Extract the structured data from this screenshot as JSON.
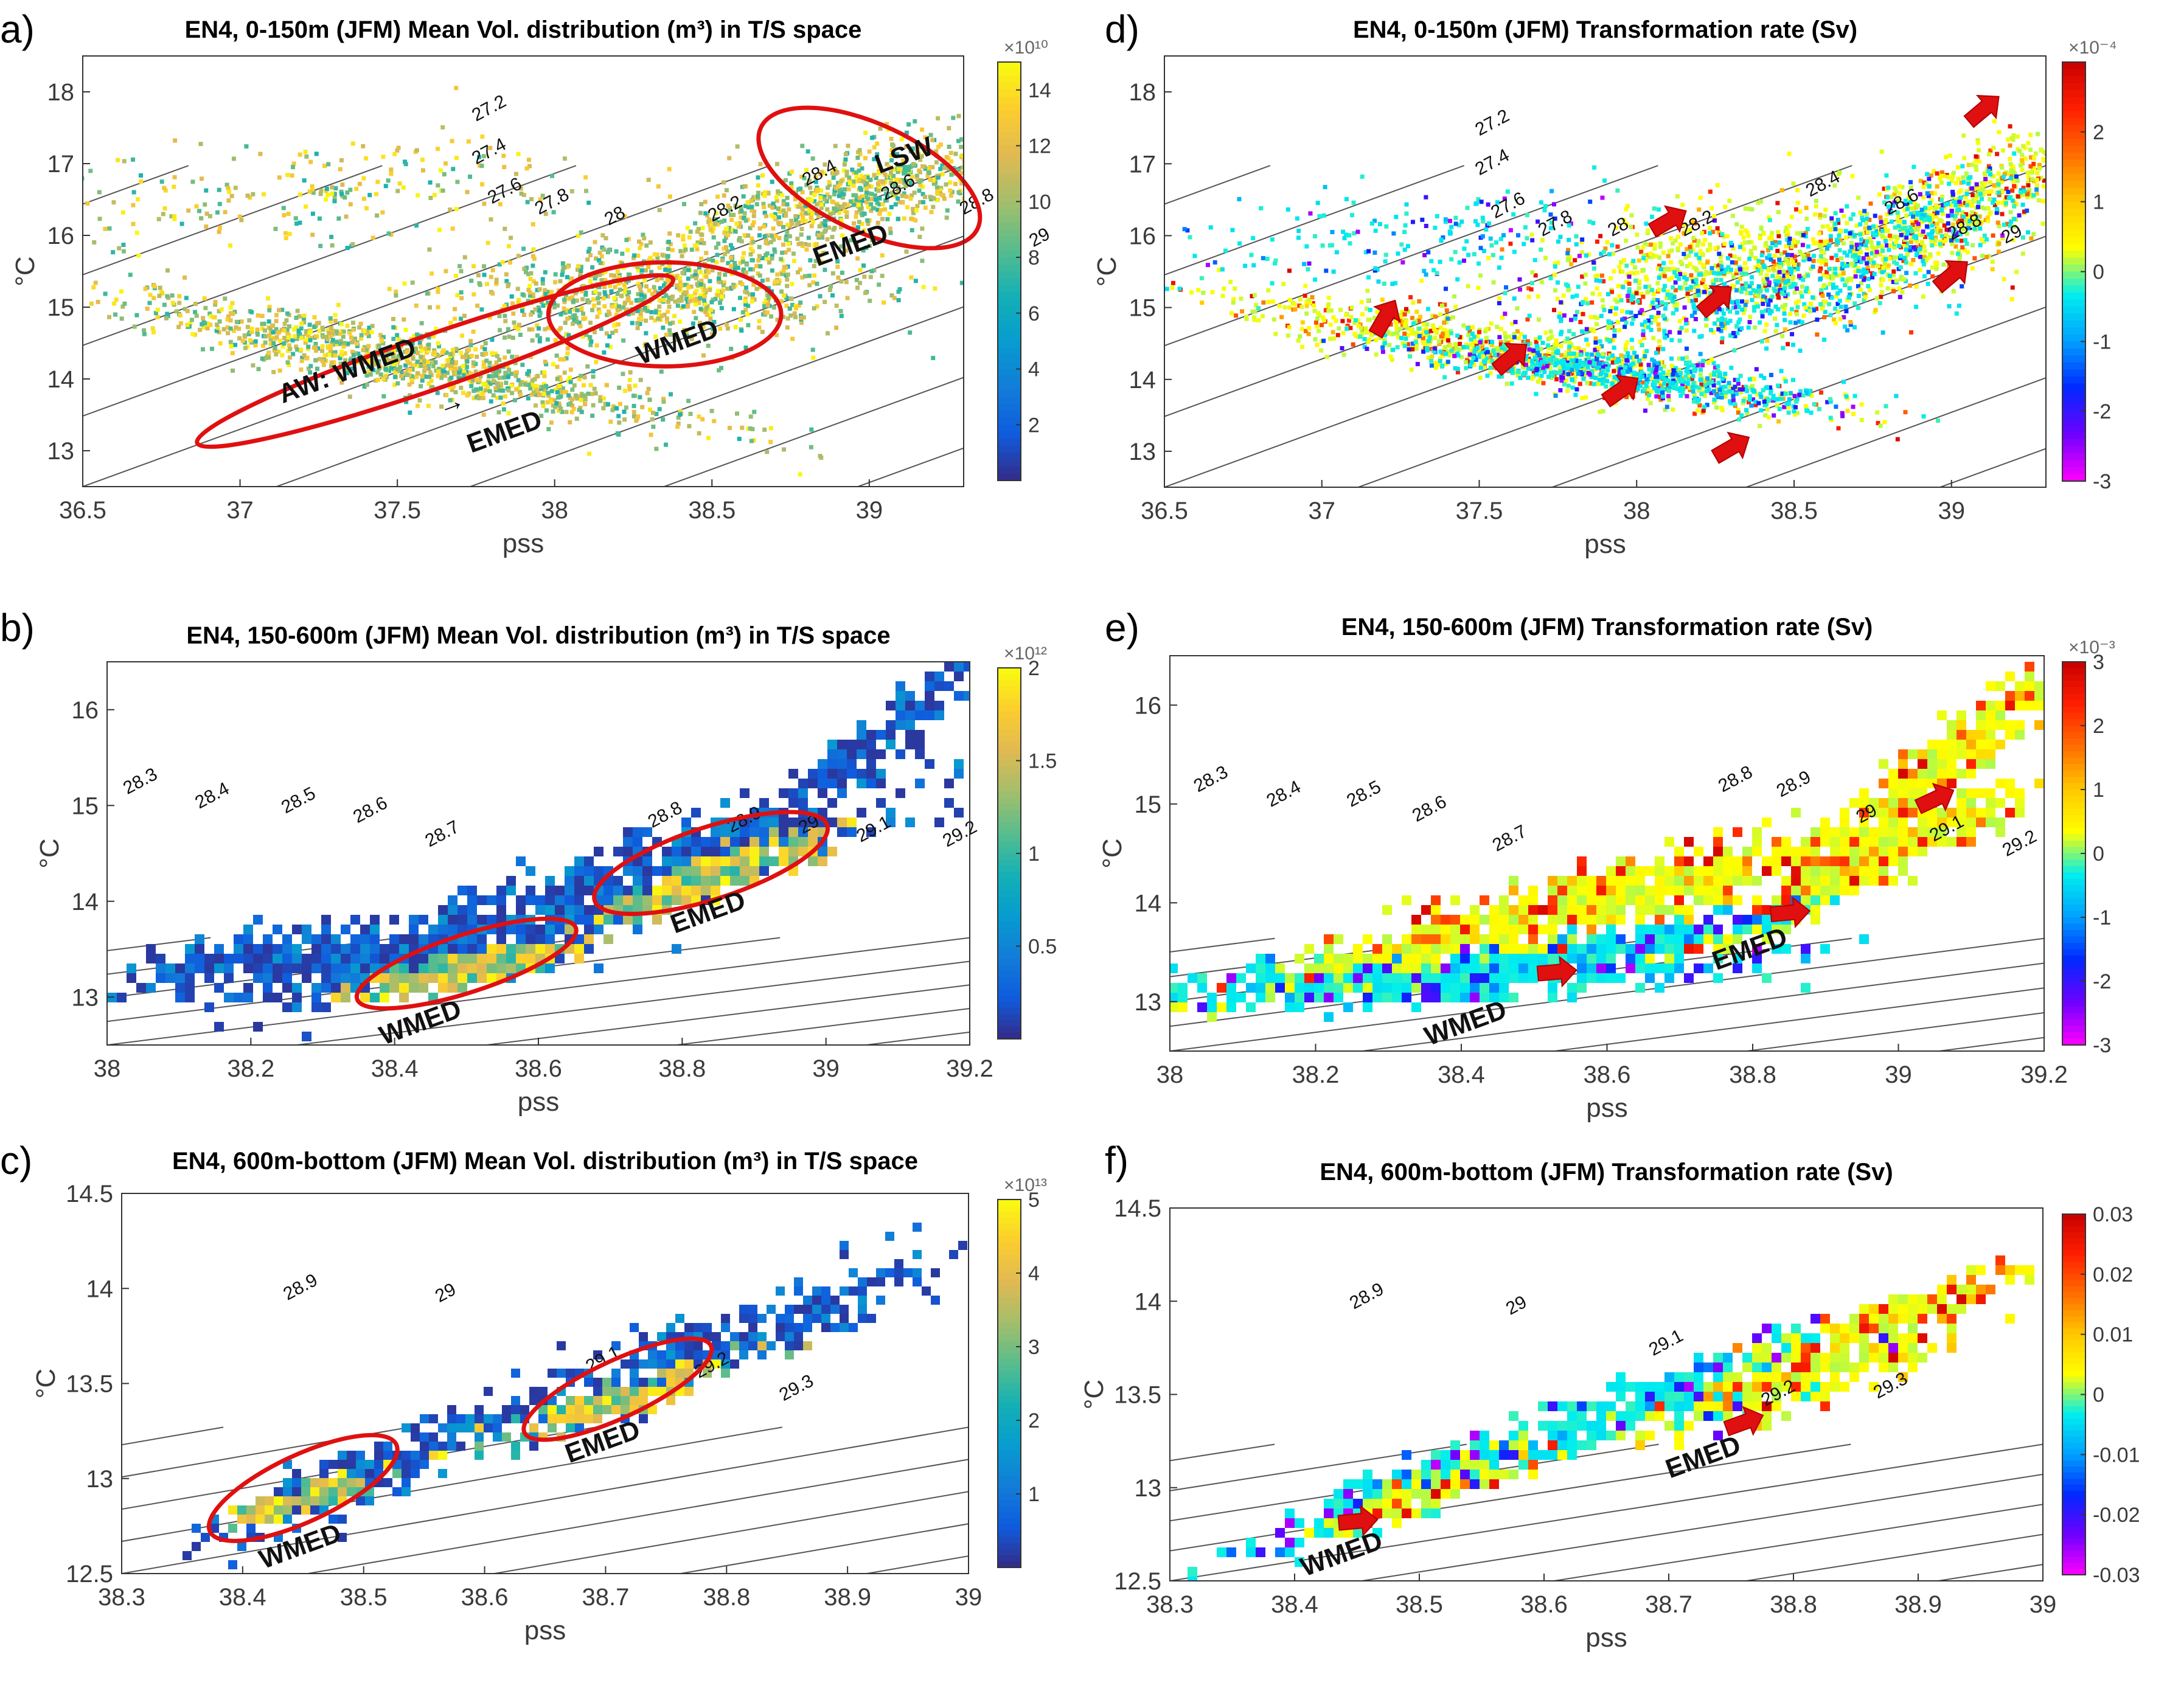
{
  "chart_data": [
    {
      "id": "a",
      "panel_label": "a)",
      "type": "scatter",
      "title": "EN4, 0-150m (JFM) Mean Vol. distribution (m³) in T/S space",
      "xlabel": "pss",
      "ylabel": "°C",
      "xlim": [
        36.5,
        39.3
      ],
      "ylim": [
        12.5,
        18.5
      ],
      "xticks": [
        "36.5",
        "37",
        "37.5",
        "38",
        "38.5",
        "39"
      ],
      "yticks": [
        "13",
        "14",
        "15",
        "16",
        "17",
        "18"
      ],
      "colormap": "parula",
      "colorbar": {
        "range": [
          0,
          15
        ],
        "ticks": [
          "2",
          "4",
          "6",
          "8",
          "10",
          "12",
          "14"
        ],
        "exponent": "×10¹⁰"
      },
      "isopycnals": [
        {
          "label": "27.2",
          "s": 37.8,
          "t": 17.7
        },
        {
          "label": "27.4",
          "s": 37.8,
          "t": 17.1
        },
        {
          "label": "27.6",
          "s": 37.85,
          "t": 16.55
        },
        {
          "label": "27.8",
          "s": 38.0,
          "t": 16.4
        },
        {
          "label": "28",
          "s": 38.2,
          "t": 16.2
        },
        {
          "label": "28.2",
          "s": 38.55,
          "t": 16.3
        },
        {
          "label": "28.4",
          "s": 38.85,
          "t": 16.8
        },
        {
          "label": "28.6",
          "s": 39.1,
          "t": 16.6
        },
        {
          "label": "28.8",
          "s": 39.35,
          "t": 16.4
        },
        {
          "label": "29",
          "s": 39.55,
          "t": 15.9
        }
      ],
      "annotations": [
        {
          "text": "AW: WMED",
          "s": 37.35,
          "t": 14.0
        },
        {
          "text": "→",
          "s": 37.68,
          "t": 13.55
        },
        {
          "text": "EMED",
          "s": 37.85,
          "t": 13.15
        },
        {
          "text": "WMED",
          "s": 38.4,
          "t": 14.4
        },
        {
          "text": "LSW",
          "s": 39.12,
          "t": 17.0
        },
        {
          "text": "EMED",
          "s": 38.95,
          "t": 15.75
        }
      ],
      "regions": [
        {
          "cs": 37.62,
          "ct": 14.25,
          "rs": 0.8,
          "rt": 0.75,
          "rot": -19
        },
        {
          "cs": 38.35,
          "ct": 14.9,
          "rs": 0.37,
          "rt": 1.45,
          "rot": 0
        },
        {
          "cs": 39.0,
          "ct": 16.8,
          "rs": 0.38,
          "rt": 1.5,
          "rot": 25
        }
      ],
      "arrows": [],
      "clouds": [
        {
          "cs": 37.5,
          "ct": 14.3,
          "ss": 0.45,
          "st": 0.6,
          "n": 1100,
          "dir": -0.9,
          "palette": "vol"
        },
        {
          "cs": 38.3,
          "ct": 15.2,
          "ss": 0.35,
          "st": 1.0,
          "n": 900,
          "dir": 0.2,
          "palette": "vol"
        },
        {
          "cs": 38.95,
          "ct": 16.6,
          "ss": 0.3,
          "st": 0.9,
          "n": 900,
          "dir": 1.2,
          "palette": "vol"
        },
        {
          "cs": 37.2,
          "ct": 16.6,
          "ss": 0.55,
          "st": 1.0,
          "n": 260,
          "dir": 0.3,
          "palette": "vol"
        }
      ]
    },
    {
      "id": "b",
      "panel_label": "b)",
      "type": "heatmap",
      "title": "EN4, 150-600m (JFM) Mean Vol. distribution (m³) in T/S space",
      "xlabel": "pss",
      "ylabel": "°C",
      "xlim": [
        38.0,
        39.2
      ],
      "ylim": [
        12.5,
        16.5
      ],
      "xticks": [
        "38",
        "38.2",
        "38.4",
        "38.6",
        "38.8",
        "39",
        "39.2"
      ],
      "yticks": [
        "13",
        "14",
        "15",
        "16"
      ],
      "colormap": "parula",
      "colorbar": {
        "range": [
          0,
          2
        ],
        "ticks": [
          "0.5",
          "1",
          "1.5",
          "2"
        ],
        "exponent": "×10¹²"
      },
      "isopycnals": [
        {
          "label": "28.3",
          "s": 38.05,
          "t": 15.2
        },
        {
          "label": "28.4",
          "s": 38.15,
          "t": 15.05
        },
        {
          "label": "28.5",
          "s": 38.27,
          "t": 15.0
        },
        {
          "label": "28.6",
          "s": 38.37,
          "t": 14.9
        },
        {
          "label": "28.7",
          "s": 38.47,
          "t": 14.65
        },
        {
          "label": "28.8",
          "s": 38.78,
          "t": 14.85
        },
        {
          "label": "28.9",
          "s": 38.89,
          "t": 14.8
        },
        {
          "label": "29",
          "s": 38.98,
          "t": 14.75
        },
        {
          "label": "29.1",
          "s": 39.07,
          "t": 14.7
        },
        {
          "label": "29.2",
          "s": 39.19,
          "t": 14.65
        }
      ],
      "annotations": [
        {
          "text": "WMED",
          "s": 38.44,
          "t": 12.65
        },
        {
          "text": "EMED",
          "s": 38.84,
          "t": 13.8
        }
      ],
      "regions": [
        {
          "cs": 38.5,
          "ct": 13.35,
          "rs": 0.16,
          "rt": 0.6,
          "rot": -18
        },
        {
          "cs": 38.84,
          "ct": 14.4,
          "rs": 0.17,
          "rt": 0.75,
          "rot": -18
        }
      ],
      "arrows": [],
      "clouds": [
        {
          "cs": 38.35,
          "ct": 13.5,
          "ss": 0.18,
          "st": 0.5,
          "n": 420,
          "dir": 0.8,
          "palette": "low"
        },
        {
          "cs": 38.72,
          "ct": 14.3,
          "ss": 0.2,
          "st": 0.55,
          "n": 480,
          "dir": 2.5,
          "palette": "low"
        },
        {
          "cs": 39.05,
          "ct": 15.6,
          "ss": 0.08,
          "st": 0.55,
          "n": 170,
          "dir": 6,
          "palette": "low"
        },
        {
          "cs": 38.5,
          "ct": 13.35,
          "ss": 0.07,
          "st": 0.22,
          "n": 170,
          "dir": 1.5,
          "palette": "vol"
        },
        {
          "cs": 38.84,
          "ct": 14.3,
          "ss": 0.07,
          "st": 0.28,
          "n": 200,
          "dir": 2.5,
          "palette": "vol"
        }
      ]
    },
    {
      "id": "c",
      "panel_label": "c)",
      "type": "heatmap",
      "title": "EN4, 600m-bottom (JFM) Mean Vol. distribution (m³) in T/S space",
      "xlabel": "pss",
      "ylabel": "°C",
      "xlim": [
        38.3,
        39.0
      ],
      "ylim": [
        12.5,
        14.5
      ],
      "xticks": [
        "38.3",
        "38.4",
        "38.5",
        "38.6",
        "38.7",
        "38.8",
        "38.9",
        "39"
      ],
      "yticks": [
        "12.5",
        "13",
        "13.5",
        "14",
        "14.5"
      ],
      "colormap": "parula",
      "colorbar": {
        "range": [
          0,
          5
        ],
        "ticks": [
          "1",
          "2",
          "3",
          "4",
          "5"
        ],
        "exponent": "×10¹³"
      },
      "isopycnals": [
        {
          "label": "28.9",
          "s": 38.45,
          "t": 13.98
        },
        {
          "label": "29",
          "s": 38.57,
          "t": 13.95
        },
        {
          "label": "29.1",
          "s": 38.7,
          "t": 13.6
        },
        {
          "label": "29.2",
          "s": 38.79,
          "t": 13.57
        },
        {
          "label": "29.3",
          "s": 38.86,
          "t": 13.45
        }
      ],
      "annotations": [
        {
          "text": "WMED",
          "s": 38.45,
          "t": 12.6
        },
        {
          "text": "EMED",
          "s": 38.7,
          "t": 13.15
        }
      ],
      "regions": [
        {
          "cs": 38.45,
          "ct": 12.95,
          "rs": 0.085,
          "rt": 0.35,
          "rot": -25
        },
        {
          "cs": 38.71,
          "ct": 13.47,
          "rs": 0.085,
          "rt": 0.3,
          "rot": -25
        }
      ],
      "arrows": [],
      "clouds": [
        {
          "cs": 38.5,
          "ct": 13.05,
          "ss": 0.07,
          "st": 0.22,
          "n": 230,
          "dir": 2.5,
          "palette": "low"
        },
        {
          "cs": 38.78,
          "ct": 13.7,
          "ss": 0.11,
          "st": 0.28,
          "n": 300,
          "dir": 2.2,
          "palette": "low"
        },
        {
          "cs": 38.7,
          "ct": 13.42,
          "ss": 0.05,
          "st": 0.12,
          "n": 140,
          "dir": 2.0,
          "palette": "vol"
        },
        {
          "cs": 38.45,
          "ct": 12.92,
          "ss": 0.03,
          "st": 0.1,
          "n": 80,
          "dir": 2.0,
          "palette": "vol"
        }
      ]
    },
    {
      "id": "d",
      "panel_label": "d)",
      "type": "scatter",
      "title": "EN4, 0-150m (JFM) Transformation rate (Sv)",
      "xlabel": "pss",
      "ylabel": "°C",
      "xlim": [
        36.5,
        39.3
      ],
      "ylim": [
        12.5,
        18.5
      ],
      "xticks": [
        "36.5",
        "37",
        "37.5",
        "38",
        "38.5",
        "39"
      ],
      "yticks": [
        "13",
        "14",
        "15",
        "16",
        "17",
        "18"
      ],
      "colormap": "diverging",
      "colorbar": {
        "range": [
          -3,
          3
        ],
        "ticks": [
          "-3",
          "-2",
          "-1",
          "0",
          "1",
          "2"
        ],
        "exponent": "×10⁻⁴"
      },
      "isopycnals": [
        {
          "label": "27.2",
          "s": 37.55,
          "t": 17.5
        },
        {
          "label": "27.4",
          "s": 37.55,
          "t": 16.95
        },
        {
          "label": "27.6",
          "s": 37.6,
          "t": 16.35
        },
        {
          "label": "27.8",
          "s": 37.75,
          "t": 16.1
        },
        {
          "label": "28",
          "s": 37.95,
          "t": 16.05
        },
        {
          "label": "28.2",
          "s": 38.2,
          "t": 16.1
        },
        {
          "label": "28.4",
          "s": 38.6,
          "t": 16.65
        },
        {
          "label": "28.6",
          "s": 38.85,
          "t": 16.4
        },
        {
          "label": "28.8",
          "s": 39.05,
          "t": 16.05
        },
        {
          "label": "29",
          "s": 39.2,
          "t": 15.95
        }
      ],
      "annotations": [],
      "regions": [],
      "arrows": [
        {
          "s": 37.2,
          "t": 14.85,
          "dir": -60
        },
        {
          "s": 37.6,
          "t": 14.3,
          "dir": -40
        },
        {
          "s": 37.95,
          "t": 13.85,
          "dir": -35
        },
        {
          "s": 38.3,
          "t": 13.05,
          "dir": -30
        },
        {
          "s": 38.25,
          "t": 15.1,
          "dir": -40
        },
        {
          "s": 38.1,
          "t": 16.2,
          "dir": -30
        },
        {
          "s": 39.0,
          "t": 15.45,
          "dir": -40
        },
        {
          "s": 39.1,
          "t": 17.75,
          "dir": -40
        }
      ],
      "clouds": [
        {
          "cs": 37.6,
          "ct": 14.4,
          "ss": 0.45,
          "st": 0.55,
          "n": 900,
          "dir": -0.8,
          "palette": "pos"
        },
        {
          "cs": 37.95,
          "ct": 14.1,
          "ss": 0.35,
          "st": 0.45,
          "n": 650,
          "dir": -0.6,
          "palette": "neg"
        },
        {
          "cs": 38.35,
          "ct": 15.6,
          "ss": 0.35,
          "st": 1.2,
          "n": 800,
          "dir": 0.5,
          "palette": "pos"
        },
        {
          "cs": 38.3,
          "ct": 15.2,
          "ss": 0.3,
          "st": 1.0,
          "n": 500,
          "dir": 0.5,
          "palette": "neg"
        },
        {
          "cs": 39.05,
          "ct": 16.5,
          "ss": 0.25,
          "st": 1.1,
          "n": 600,
          "dir": 2.0,
          "palette": "pos"
        },
        {
          "cs": 38.9,
          "ct": 16.2,
          "ss": 0.2,
          "st": 0.8,
          "n": 260,
          "dir": 1.0,
          "palette": "neg"
        },
        {
          "cs": 37.3,
          "ct": 16.0,
          "ss": 0.45,
          "st": 1.0,
          "n": 220,
          "dir": 0.3,
          "palette": "neg"
        }
      ]
    },
    {
      "id": "e",
      "panel_label": "e)",
      "type": "heatmap",
      "title": "EN4, 150-600m (JFM) Transformation rate (Sv)",
      "xlabel": "pss",
      "ylabel": "°C",
      "xlim": [
        38.0,
        39.2
      ],
      "ylim": [
        12.5,
        16.5
      ],
      "xticks": [
        "38",
        "38.2",
        "38.4",
        "38.6",
        "38.8",
        "39",
        "39.2"
      ],
      "yticks": [
        "13",
        "14",
        "15",
        "16"
      ],
      "colormap": "diverging",
      "colorbar": {
        "range": [
          -3,
          3
        ],
        "ticks": [
          "-3",
          "-2",
          "-1",
          "0",
          "1",
          "2",
          "3"
        ],
        "exponent": "×10⁻³"
      },
      "isopycnals": [
        {
          "label": "28.3",
          "s": 38.06,
          "t": 15.2
        },
        {
          "label": "28.4",
          "s": 38.16,
          "t": 15.05
        },
        {
          "label": "28.5",
          "s": 38.27,
          "t": 15.05
        },
        {
          "label": "28.6",
          "s": 38.36,
          "t": 14.9
        },
        {
          "label": "28.7",
          "s": 38.47,
          "t": 14.6
        },
        {
          "label": "28.8",
          "s": 38.78,
          "t": 15.2
        },
        {
          "label": "28.9",
          "s": 38.86,
          "t": 15.15
        },
        {
          "label": "29",
          "s": 38.96,
          "t": 14.85
        },
        {
          "label": "29.1",
          "s": 39.07,
          "t": 14.7
        },
        {
          "label": "29.2",
          "s": 39.17,
          "t": 14.55
        }
      ],
      "annotations": [
        {
          "text": "WMED",
          "s": 38.41,
          "t": 12.7
        },
        {
          "text": "EMED",
          "s": 38.8,
          "t": 13.45
        }
      ],
      "regions": [],
      "arrows": [
        {
          "s": 38.53,
          "t": 13.3,
          "dir": -5
        },
        {
          "s": 38.85,
          "t": 13.9,
          "dir": -5
        },
        {
          "s": 39.05,
          "t": 15.05,
          "dir": -25
        }
      ],
      "clouds": [
        {
          "cs": 38.35,
          "ct": 13.3,
          "ss": 0.2,
          "st": 0.35,
          "n": 520,
          "dir": 0.5,
          "palette": "neg"
        },
        {
          "cs": 38.6,
          "ct": 14.1,
          "ss": 0.25,
          "st": 0.45,
          "n": 600,
          "dir": 1.8,
          "palette": "pos"
        },
        {
          "cs": 39.05,
          "ct": 15.4,
          "ss": 0.1,
          "st": 0.6,
          "n": 300,
          "dir": 6,
          "palette": "pos"
        },
        {
          "cs": 38.95,
          "ct": 14.4,
          "ss": 0.1,
          "st": 0.3,
          "n": 220,
          "dir": 3.5,
          "palette": "pos"
        },
        {
          "cs": 38.6,
          "ct": 13.6,
          "ss": 0.12,
          "st": 0.2,
          "n": 180,
          "dir": 1.5,
          "palette": "neg"
        }
      ]
    },
    {
      "id": "f",
      "panel_label": "f)",
      "type": "heatmap",
      "title": "EN4, 600m-bottom (JFM) Transformation rate (Sv)",
      "xlabel": "pss",
      "ylabel": "°C",
      "xlim": [
        38.3,
        39.0
      ],
      "ylim": [
        12.5,
        14.5
      ],
      "xticks": [
        "38.3",
        "38.4",
        "38.5",
        "38.6",
        "38.7",
        "38.8",
        "38.9",
        "39"
      ],
      "yticks": [
        "12.5",
        "13",
        "13.5",
        "14",
        "14.5"
      ],
      "colormap": "diverging",
      "colorbar": {
        "range": [
          -0.03,
          0.03
        ],
        "ticks": [
          "-0.03",
          "-0.02",
          "-0.01",
          "0",
          "0.01",
          "0.02",
          "0.03"
        ],
        "exponent": ""
      },
      "isopycnals": [
        {
          "label": "28.9",
          "s": 38.46,
          "t": 14.0
        },
        {
          "label": "29",
          "s": 38.58,
          "t": 13.95
        },
        {
          "label": "29.1",
          "s": 38.7,
          "t": 13.75
        },
        {
          "label": "29.2",
          "s": 38.79,
          "t": 13.48
        },
        {
          "label": "29.3",
          "s": 38.88,
          "t": 13.52
        }
      ],
      "annotations": [
        {
          "text": "WMED",
          "s": 38.44,
          "t": 12.6
        },
        {
          "text": "EMED",
          "s": 38.73,
          "t": 13.12
        }
      ],
      "regions": [],
      "arrows": [
        {
          "s": 38.45,
          "t": 12.82,
          "dir": -5
        },
        {
          "s": 38.76,
          "t": 13.35,
          "dir": -20
        }
      ],
      "clouds": [
        {
          "cs": 38.48,
          "ct": 13.0,
          "ss": 0.06,
          "st": 0.2,
          "n": 200,
          "dir": 2.5,
          "palette": "neg"
        },
        {
          "cs": 38.52,
          "ct": 13.05,
          "ss": 0.05,
          "st": 0.15,
          "n": 120,
          "dir": 2.5,
          "palette": "pos"
        },
        {
          "cs": 38.72,
          "ct": 13.55,
          "ss": 0.08,
          "st": 0.25,
          "n": 260,
          "dir": 2.0,
          "palette": "neg"
        },
        {
          "cs": 38.8,
          "ct": 13.6,
          "ss": 0.06,
          "st": 0.2,
          "n": 180,
          "dir": 2.0,
          "palette": "pos"
        },
        {
          "cs": 38.88,
          "ct": 13.95,
          "ss": 0.06,
          "st": 0.18,
          "n": 150,
          "dir": 2.5,
          "palette": "pos"
        }
      ]
    }
  ]
}
